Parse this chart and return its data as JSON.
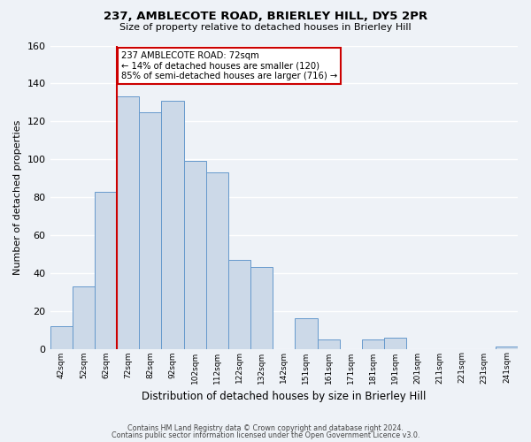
{
  "title1": "237, AMBLECOTE ROAD, BRIERLEY HILL, DY5 2PR",
  "title2": "Size of property relative to detached houses in Brierley Hill",
  "xlabel": "Distribution of detached houses by size in Brierley Hill",
  "ylabel": "Number of detached properties",
  "bin_labels": [
    "42sqm",
    "52sqm",
    "62sqm",
    "72sqm",
    "82sqm",
    "92sqm",
    "102sqm",
    "112sqm",
    "122sqm",
    "132sqm",
    "142sqm",
    "151sqm",
    "161sqm",
    "171sqm",
    "181sqm",
    "191sqm",
    "201sqm",
    "211sqm",
    "221sqm",
    "231sqm",
    "241sqm"
  ],
  "bar_heights": [
    12,
    33,
    83,
    133,
    125,
    131,
    99,
    93,
    47,
    43,
    0,
    16,
    5,
    0,
    5,
    6,
    0,
    0,
    0,
    0,
    1
  ],
  "bar_color": "#ccd9e8",
  "bar_edge_color": "#6699cc",
  "vline_x_index": 3,
  "vline_color": "#cc0000",
  "annotation_text": "237 AMBLECOTE ROAD: 72sqm\n← 14% of detached houses are smaller (120)\n85% of semi-detached houses are larger (716) →",
  "annotation_box_color": "#ffffff",
  "annotation_box_edge": "#cc0000",
  "ylim": [
    0,
    160
  ],
  "yticks": [
    0,
    20,
    40,
    60,
    80,
    100,
    120,
    140,
    160
  ],
  "footer1": "Contains HM Land Registry data © Crown copyright and database right 2024.",
  "footer2": "Contains public sector information licensed under the Open Government Licence v3.0.",
  "bg_color": "#eef2f7"
}
